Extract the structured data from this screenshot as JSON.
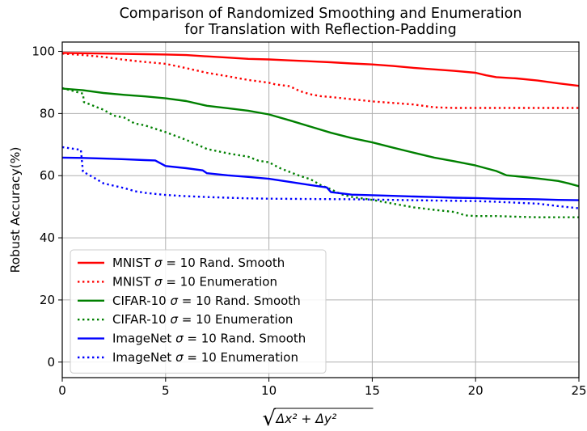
{
  "chart_data": {
    "type": "line",
    "title": [
      "Comparison of Randomized Smoothing and Enumeration",
      "for Translation with Reflection-Padding"
    ],
    "xlabel": "√(Δx² + Δy²)",
    "ylabel": "Robust Accuracy(%)",
    "xlim": [
      0,
      25
    ],
    "ylim": [
      -5,
      103
    ],
    "xticks": [
      0,
      5,
      10,
      15,
      20,
      25
    ],
    "yticks": [
      0,
      20,
      40,
      60,
      80,
      100
    ],
    "grid": true,
    "legend_position": "lower-left",
    "series": [
      {
        "name": "MNIST σ = 10 Rand. Smooth",
        "legend_math": {
          "prefix": "MNIST ",
          "suffix": " Rand. Smooth"
        },
        "color": "#ff0000",
        "style": "solid",
        "points": [
          [
            0,
            99.5
          ],
          [
            2,
            99.3
          ],
          [
            4,
            99.1
          ],
          [
            5,
            99.0
          ],
          [
            6,
            98.8
          ],
          [
            7,
            98.4
          ],
          [
            8,
            98.0
          ],
          [
            9,
            97.6
          ],
          [
            10,
            97.4
          ],
          [
            11,
            97.1
          ],
          [
            12,
            96.8
          ],
          [
            13,
            96.5
          ],
          [
            14,
            96.1
          ],
          [
            15,
            95.8
          ],
          [
            16,
            95.3
          ],
          [
            17,
            94.7
          ],
          [
            18,
            94.2
          ],
          [
            19,
            93.7
          ],
          [
            20,
            93.1
          ],
          [
            20.5,
            92.3
          ],
          [
            21,
            91.7
          ],
          [
            22,
            91.3
          ],
          [
            23,
            90.6
          ],
          [
            24,
            89.7
          ],
          [
            25,
            88.9
          ]
        ]
      },
      {
        "name": "MNIST σ = 10 Enumeration",
        "legend_math": {
          "prefix": "MNIST ",
          "suffix": " Enumeration"
        },
        "color": "#ff0000",
        "style": "dotted",
        "points": [
          [
            0,
            99.3
          ],
          [
            1,
            98.8
          ],
          [
            2,
            98.2
          ],
          [
            3,
            97.3
          ],
          [
            4,
            96.6
          ],
          [
            5,
            96.0
          ],
          [
            6,
            94.6
          ],
          [
            7,
            93.1
          ],
          [
            8,
            92.0
          ],
          [
            9,
            90.8
          ],
          [
            10,
            89.9
          ],
          [
            10.3,
            89.4
          ],
          [
            11,
            88.8
          ],
          [
            11.5,
            87.2
          ],
          [
            12,
            86.2
          ],
          [
            12.5,
            85.6
          ],
          [
            13,
            85.3
          ],
          [
            14,
            84.6
          ],
          [
            15,
            83.9
          ],
          [
            16,
            83.4
          ],
          [
            17,
            82.9
          ],
          [
            18,
            82.0
          ],
          [
            19,
            81.8
          ],
          [
            20,
            81.8
          ],
          [
            22,
            81.8
          ],
          [
            25,
            81.8
          ]
        ]
      },
      {
        "name": "CIFAR-10 σ = 10 Rand. Smooth",
        "legend_math": {
          "prefix": "CIFAR-10 ",
          "suffix": " Rand. Smooth"
        },
        "color": "#008000",
        "style": "solid",
        "points": [
          [
            0,
            88.0
          ],
          [
            1,
            87.5
          ],
          [
            2,
            86.6
          ],
          [
            3,
            86.0
          ],
          [
            4,
            85.5
          ],
          [
            5,
            84.9
          ],
          [
            6,
            84.0
          ],
          [
            7,
            82.5
          ],
          [
            8,
            81.7
          ],
          [
            9,
            80.9
          ],
          [
            10,
            79.7
          ],
          [
            11,
            77.8
          ],
          [
            12,
            75.8
          ],
          [
            13,
            73.8
          ],
          [
            14,
            72.1
          ],
          [
            15,
            70.7
          ],
          [
            16,
            69.0
          ],
          [
            17,
            67.4
          ],
          [
            18,
            65.8
          ],
          [
            19,
            64.6
          ],
          [
            20,
            63.3
          ],
          [
            21,
            61.5
          ],
          [
            21.5,
            60.1
          ],
          [
            22,
            59.8
          ],
          [
            23,
            59.1
          ],
          [
            24,
            58.3
          ],
          [
            24.5,
            57.5
          ],
          [
            25,
            56.6
          ]
        ]
      },
      {
        "name": "CIFAR-10 σ = 10 Enumeration",
        "legend_math": {
          "prefix": "CIFAR-10 ",
          "suffix": " Enumeration"
        },
        "color": "#008000",
        "style": "dotted",
        "points": [
          [
            0,
            88.2
          ],
          [
            1,
            86.4
          ],
          [
            1.05,
            83.7
          ],
          [
            2,
            81.2
          ],
          [
            2.5,
            79.3
          ],
          [
            3,
            78.7
          ],
          [
            3.5,
            76.8
          ],
          [
            4,
            76.2
          ],
          [
            5,
            74.0
          ],
          [
            6,
            71.5
          ],
          [
            7,
            68.6
          ],
          [
            8,
            67.2
          ],
          [
            9,
            66.1
          ],
          [
            9.5,
            64.8
          ],
          [
            10,
            64.3
          ],
          [
            10.5,
            62.5
          ],
          [
            11,
            61.2
          ],
          [
            11.5,
            59.9
          ],
          [
            12,
            58.9
          ],
          [
            12.5,
            57.0
          ],
          [
            13,
            55.6
          ],
          [
            13.5,
            54.0
          ],
          [
            14,
            53.2
          ],
          [
            15,
            52.2
          ],
          [
            16,
            51.0
          ],
          [
            17,
            49.8
          ],
          [
            18,
            49.0
          ],
          [
            19,
            48.3
          ],
          [
            19.5,
            47.2
          ],
          [
            20,
            47.0
          ],
          [
            21,
            47.0
          ],
          [
            22,
            46.8
          ],
          [
            23,
            46.6
          ],
          [
            25,
            46.6
          ]
        ]
      },
      {
        "name": "ImageNet σ = 10 Rand. Smooth",
        "legend_math": {
          "prefix": "ImageNet ",
          "suffix": " Rand. Smooth"
        },
        "color": "#0000ff",
        "style": "solid",
        "points": [
          [
            0,
            65.8
          ],
          [
            1,
            65.7
          ],
          [
            2,
            65.5
          ],
          [
            3,
            65.3
          ],
          [
            4,
            65.0
          ],
          [
            4.5,
            64.9
          ],
          [
            5,
            63.1
          ],
          [
            6,
            62.4
          ],
          [
            6.8,
            61.7
          ],
          [
            7,
            60.8
          ],
          [
            8,
            60.1
          ],
          [
            9,
            59.6
          ],
          [
            10,
            59.0
          ],
          [
            11,
            58.0
          ],
          [
            12,
            57.0
          ],
          [
            12.8,
            56.2
          ],
          [
            13,
            54.7
          ],
          [
            14,
            53.9
          ],
          [
            15,
            53.7
          ],
          [
            16,
            53.5
          ],
          [
            17,
            53.3
          ],
          [
            18,
            53.1
          ],
          [
            19,
            52.9
          ],
          [
            20,
            52.8
          ],
          [
            21,
            52.6
          ],
          [
            22,
            52.5
          ],
          [
            23,
            52.4
          ],
          [
            24,
            52.2
          ],
          [
            25,
            52.1
          ]
        ]
      },
      {
        "name": "ImageNet σ = 10 Enumeration",
        "legend_math": {
          "prefix": "ImageNet ",
          "suffix": " Enumeration"
        },
        "color": "#0000ff",
        "style": "dotted",
        "points": [
          [
            0,
            69.2
          ],
          [
            0.9,
            68.3
          ],
          [
            1.0,
            61.3
          ],
          [
            1.5,
            59.5
          ],
          [
            2,
            57.5
          ],
          [
            3,
            56.0
          ],
          [
            3.5,
            55.0
          ],
          [
            4,
            54.5
          ],
          [
            5,
            53.8
          ],
          [
            6,
            53.4
          ],
          [
            7,
            53.1
          ],
          [
            8,
            52.9
          ],
          [
            9,
            52.7
          ],
          [
            10,
            52.6
          ],
          [
            12,
            52.5
          ],
          [
            14,
            52.4
          ],
          [
            16,
            52.2
          ],
          [
            18,
            52.0
          ],
          [
            20,
            51.8
          ],
          [
            21,
            51.6
          ],
          [
            22,
            51.3
          ],
          [
            23,
            51.0
          ],
          [
            24,
            50.2
          ],
          [
            25,
            49.5
          ]
        ]
      }
    ]
  }
}
